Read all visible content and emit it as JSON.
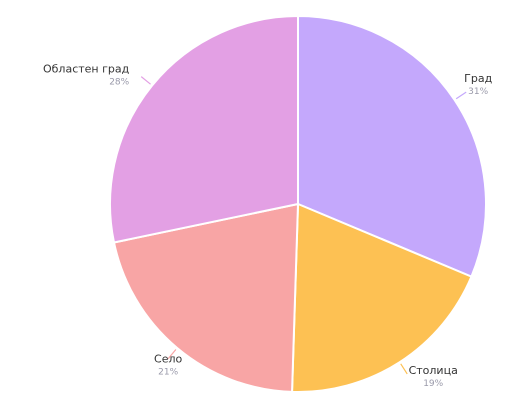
{
  "chart_data": {
    "type": "pie",
    "start_angle_deg": 90,
    "direction": "clockwise",
    "slices": [
      {
        "label": "Град",
        "value": 31,
        "value_label": "31%",
        "color": "#c4a8fc"
      },
      {
        "label": "Столица",
        "value": 19,
        "value_label": "19%",
        "color": "#fdc153"
      },
      {
        "label": "Село",
        "value": 21,
        "value_label": "21%",
        "color": "#f8a5a5"
      },
      {
        "label": "Областен град",
        "value": 28,
        "value_label": "28%",
        "color": "#e3a0e4"
      }
    ]
  }
}
